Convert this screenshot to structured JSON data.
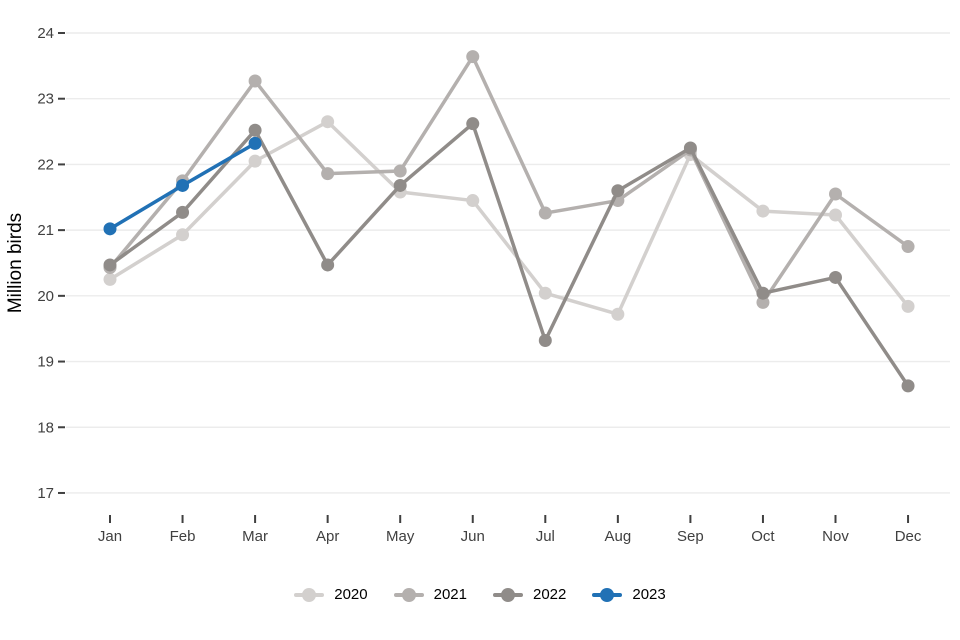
{
  "chart_data": {
    "type": "line",
    "title": "",
    "xlabel": "",
    "ylabel": "Million birds",
    "categories": [
      "Jan",
      "Feb",
      "Mar",
      "Apr",
      "May",
      "Jun",
      "Jul",
      "Aug",
      "Sep",
      "Oct",
      "Nov",
      "Dec"
    ],
    "yticks": [
      17,
      18,
      19,
      20,
      21,
      22,
      23,
      24
    ],
    "ylim": [
      17,
      24
    ],
    "grid": true,
    "legend_position": "bottom",
    "series": [
      {
        "name": "2020",
        "color": "#d3d0ce",
        "values": [
          20.25,
          20.93,
          22.05,
          22.65,
          21.58,
          21.45,
          20.04,
          19.72,
          22.15,
          21.29,
          21.23,
          19.84
        ]
      },
      {
        "name": "2021",
        "color": "#b4b0ae",
        "values": [
          20.43,
          21.75,
          23.27,
          21.86,
          21.9,
          23.64,
          21.26,
          21.45,
          22.22,
          19.9,
          21.55,
          20.75
        ]
      },
      {
        "name": "2022",
        "color": "#908c89",
        "values": [
          20.47,
          21.27,
          22.52,
          20.47,
          21.68,
          22.62,
          19.32,
          21.6,
          22.25,
          20.04,
          20.28,
          18.63
        ]
      },
      {
        "name": "2023",
        "color": "#2171b5",
        "values": [
          21.02,
          21.68,
          22.32
        ]
      }
    ],
    "style": {
      "gridline_color": "#ececec",
      "tick_color": "#404040",
      "axis_text_color": "#404040",
      "background": "#ffffff",
      "line_width": 3.5,
      "point_radius": 6.5
    }
  }
}
